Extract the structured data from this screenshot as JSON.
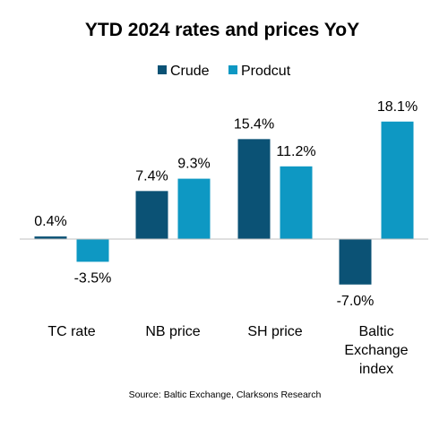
{
  "chart_data": {
    "type": "bar",
    "title": "YTD 2024 rates and prices YoY",
    "categories": [
      [
        "TC rate"
      ],
      [
        "NB price"
      ],
      [
        "SH price"
      ],
      [
        "Baltic",
        "Exchange",
        "index"
      ]
    ],
    "series": [
      {
        "name": "Crude",
        "color": "#0b5275",
        "values": [
          0.4,
          7.4,
          15.4,
          -7.0
        ],
        "labels": [
          "0.4%",
          "7.4%",
          "15.4%",
          "-7.0%"
        ]
      },
      {
        "name": "Prodcut",
        "color": "#0e98c3",
        "values": [
          -3.5,
          9.3,
          11.2,
          18.1
        ],
        "labels": [
          "-3.5%",
          "9.3%",
          "11.2%",
          "18.1%"
        ]
      }
    ],
    "ylim": [
      -8,
      19
    ],
    "grid": false,
    "legend_position": "top",
    "source": "Source: Baltic Exchange, Clarksons Research"
  }
}
